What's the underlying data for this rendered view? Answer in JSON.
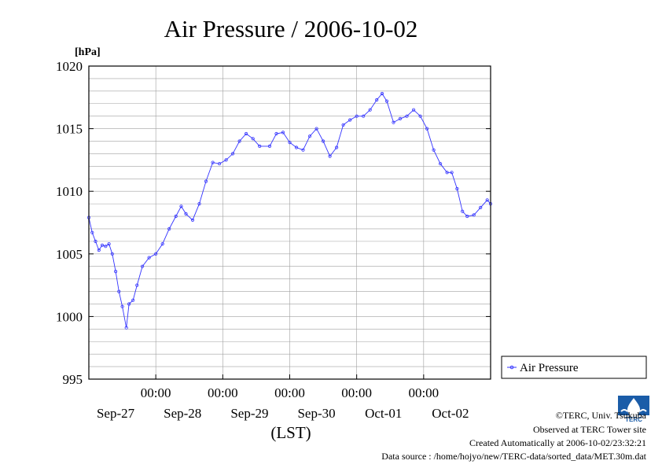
{
  "chart_data": {
    "type": "line",
    "title": "Air Pressure / 2006-10-02",
    "ylabel": "[hPa]",
    "xlabel": "(LST)",
    "ylim": [
      995,
      1020
    ],
    "yticks": [
      995,
      1000,
      1005,
      1010,
      1015,
      1020
    ],
    "xlim": [
      0,
      6
    ],
    "x_unit": "days from 2006-09-26 00:00 LST",
    "x_time_labels": [
      "00:00",
      "00:00",
      "00:00",
      "00:00",
      "00:00"
    ],
    "x_time_positions": [
      1,
      2,
      3,
      4,
      5
    ],
    "x_date_labels": [
      "Sep-27",
      "Sep-28",
      "Sep-29",
      "Sep-30",
      "Oct-01",
      "Oct-02"
    ],
    "x_date_positions": [
      0.4,
      1.4,
      2.4,
      3.4,
      4.4,
      5.4
    ],
    "grid": true,
    "legend": "right",
    "series": [
      {
        "name": "Air Pressure",
        "color": "#3333ff",
        "points": [
          [
            0.0,
            1007.9
          ],
          [
            0.05,
            1006.7
          ],
          [
            0.1,
            1006.0
          ],
          [
            0.15,
            1005.3
          ],
          [
            0.2,
            1005.7
          ],
          [
            0.25,
            1005.6
          ],
          [
            0.3,
            1005.8
          ],
          [
            0.35,
            1005.0
          ],
          [
            0.4,
            1003.6
          ],
          [
            0.45,
            1002.0
          ],
          [
            0.5,
            1000.8
          ],
          [
            0.56,
            999.1
          ],
          [
            0.6,
            1001.0
          ],
          [
            0.66,
            1001.3
          ],
          [
            0.72,
            1002.5
          ],
          [
            0.8,
            1004.0
          ],
          [
            0.9,
            1004.7
          ],
          [
            1.0,
            1005.0
          ],
          [
            1.1,
            1005.8
          ],
          [
            1.2,
            1007.0
          ],
          [
            1.3,
            1008.0
          ],
          [
            1.38,
            1008.8
          ],
          [
            1.45,
            1008.2
          ],
          [
            1.55,
            1007.7
          ],
          [
            1.65,
            1009.0
          ],
          [
            1.75,
            1010.8
          ],
          [
            1.85,
            1012.3
          ],
          [
            1.95,
            1012.2
          ],
          [
            2.05,
            1012.5
          ],
          [
            2.15,
            1013.0
          ],
          [
            2.25,
            1014.0
          ],
          [
            2.35,
            1014.6
          ],
          [
            2.45,
            1014.2
          ],
          [
            2.55,
            1013.6
          ],
          [
            2.7,
            1013.6
          ],
          [
            2.8,
            1014.6
          ],
          [
            2.9,
            1014.7
          ],
          [
            3.0,
            1013.9
          ],
          [
            3.1,
            1013.5
          ],
          [
            3.2,
            1013.3
          ],
          [
            3.3,
            1014.4
          ],
          [
            3.4,
            1015.0
          ],
          [
            3.5,
            1014.0
          ],
          [
            3.6,
            1012.8
          ],
          [
            3.7,
            1013.5
          ],
          [
            3.8,
            1015.3
          ],
          [
            3.9,
            1015.7
          ],
          [
            4.0,
            1016.0
          ],
          [
            4.1,
            1016.0
          ],
          [
            4.2,
            1016.5
          ],
          [
            4.3,
            1017.3
          ],
          [
            4.38,
            1017.8
          ],
          [
            4.45,
            1017.2
          ],
          [
            4.55,
            1015.5
          ],
          [
            4.65,
            1015.8
          ],
          [
            4.75,
            1016.0
          ],
          [
            4.85,
            1016.5
          ],
          [
            4.95,
            1016.0
          ],
          [
            5.05,
            1015.0
          ],
          [
            5.15,
            1013.3
          ],
          [
            5.25,
            1012.2
          ],
          [
            5.35,
            1011.5
          ],
          [
            5.42,
            1011.5
          ],
          [
            5.5,
            1010.2
          ],
          [
            5.58,
            1008.4
          ],
          [
            5.65,
            1008.0
          ],
          [
            5.75,
            1008.1
          ],
          [
            5.85,
            1008.7
          ],
          [
            5.95,
            1009.3
          ],
          [
            6.0,
            1009.0
          ]
        ]
      }
    ]
  },
  "footer": {
    "copyright": "©TERC, Univ. Tsukuba",
    "observed": "Observed at TERC Tower site",
    "created": "Created Automatically at 2006-10-02/23:32:21",
    "source": "Data source : /home/hojyo/new/TERC-data/sorted_data/MET.30m.dat",
    "logo_text": "TERC"
  },
  "colors": {
    "grid": "#a0a0a0",
    "frame": "#000000",
    "logo_blue": "#1a5ca8"
  }
}
